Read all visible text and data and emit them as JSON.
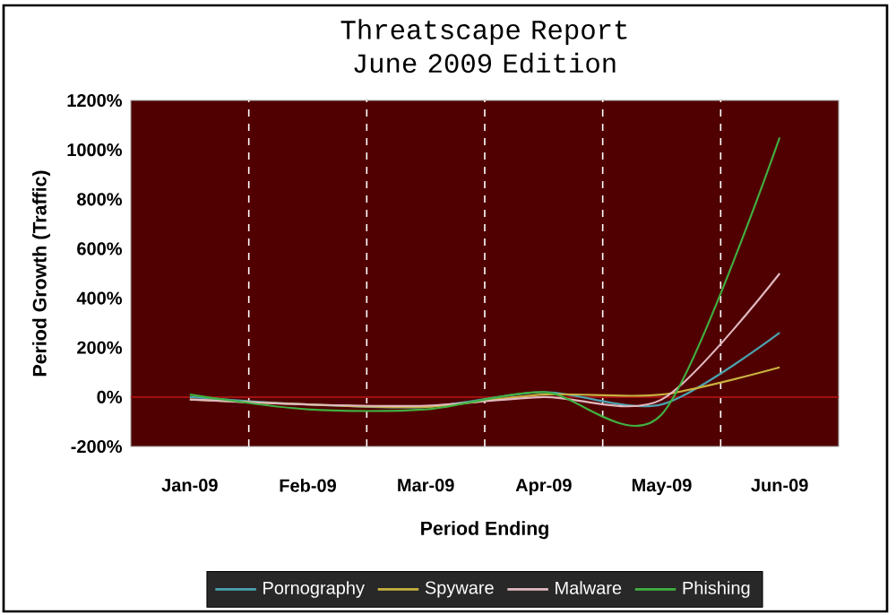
{
  "chart_data": {
    "type": "line",
    "title": "Threatscape Report\nJune 2009 Edition",
    "xlabel": "Period Ending",
    "ylabel": "Period Growth (Traffic)",
    "categories": [
      "Jan-09",
      "Feb-09",
      "Mar-09",
      "Apr-09",
      "May-09",
      "Jun-09"
    ],
    "series": [
      {
        "name": "Pornography",
        "color": "#4aa3b0",
        "values": [
          0,
          -30,
          -40,
          20,
          -30,
          260
        ]
      },
      {
        "name": "Spyware",
        "color": "#c8b040",
        "values": [
          -10,
          -30,
          -40,
          10,
          10,
          120
        ]
      },
      {
        "name": "Malware",
        "color": "#e0b8c0",
        "values": [
          -10,
          -30,
          -35,
          0,
          -10,
          500
        ]
      },
      {
        "name": "Phishing",
        "color": "#40b040",
        "values": [
          10,
          -50,
          -50,
          20,
          -70,
          1050
        ]
      }
    ],
    "ylim": [
      -200,
      1200
    ],
    "yticks": [
      {
        "value": -200,
        "label": "-200%"
      },
      {
        "value": 0,
        "label": "0%"
      },
      {
        "value": 200,
        "label": "200%"
      },
      {
        "value": 400,
        "label": "400%"
      },
      {
        "value": 600,
        "label": "600%"
      },
      {
        "value": 800,
        "label": "800%"
      },
      {
        "value": 1000,
        "label": "1000%"
      },
      {
        "value": 1200,
        "label": "1200%"
      }
    ],
    "grid": "x",
    "legend": "bottom",
    "marker": "none",
    "line_style": "solid",
    "ref_lines": [
      {
        "axis": "y",
        "value": 0,
        "color": "#a01010"
      }
    ]
  }
}
